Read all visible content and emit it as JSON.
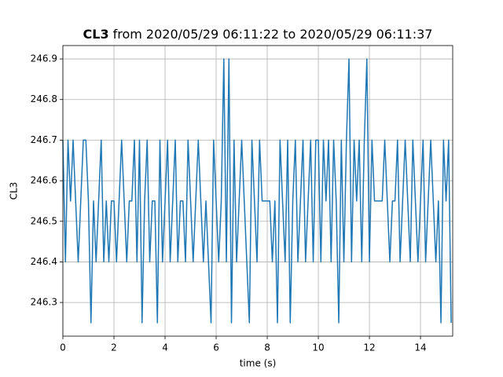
{
  "chart_data": {
    "type": "line",
    "title": {
      "name": "CL3",
      "text": "from 2020/05/29 06:11:22 to 2020/05/29 06:11:37"
    },
    "xlabel": "time (s)",
    "ylabel": "CL3",
    "x": [
      0,
      0.1,
      0.2,
      0.3,
      0.4,
      0.5,
      0.6,
      0.7,
      0.8,
      0.9,
      1,
      1.1,
      1.2,
      1.3,
      1.4,
      1.5,
      1.6,
      1.7,
      1.8,
      1.9,
      2,
      2.1,
      2.2,
      2.3,
      2.4,
      2.5,
      2.6,
      2.7,
      2.8,
      2.9,
      3,
      3.1,
      3.2,
      3.3,
      3.4,
      3.5,
      3.6,
      3.7,
      3.8,
      3.9,
      4,
      4.1,
      4.2,
      4.3,
      4.4,
      4.5,
      4.6,
      4.7,
      4.8,
      4.9,
      5,
      5.1,
      5.2,
      5.3,
      5.4,
      5.5,
      5.6,
      5.7,
      5.8,
      5.9,
      6,
      6.1,
      6.2,
      6.3,
      6.4,
      6.5,
      6.6,
      6.7,
      6.8,
      6.9,
      7,
      7.1,
      7.2,
      7.3,
      7.4,
      7.5,
      7.6,
      7.7,
      7.8,
      7.9,
      8,
      8.1,
      8.2,
      8.3,
      8.4,
      8.5,
      8.6,
      8.7,
      8.8,
      8.9,
      9,
      9.1,
      9.2,
      9.3,
      9.4,
      9.5,
      9.6,
      9.7,
      9.8,
      9.9,
      10,
      10.1,
      10.2,
      10.3,
      10.4,
      10.5,
      10.6,
      10.7,
      10.8,
      10.9,
      11,
      11.1,
      11.2,
      11.3,
      11.4,
      11.5,
      11.6,
      11.7,
      11.8,
      11.9,
      12,
      12.1,
      12.2,
      12.3,
      12.4,
      12.5,
      12.6,
      12.7,
      12.8,
      12.9,
      13,
      13.1,
      13.2,
      13.3,
      13.4,
      13.5,
      13.6,
      13.7,
      13.8,
      13.9,
      14,
      14.1,
      14.2,
      14.3,
      14.4,
      14.5,
      14.6,
      14.7,
      14.8,
      14.9,
      15,
      15.1,
      15.2
    ],
    "series": [
      {
        "color": "#1f77b4",
        "values": [
          246.7,
          246.4,
          246.7,
          246.55,
          246.7,
          246.55,
          246.4,
          246.55,
          246.7,
          246.7,
          246.55,
          246.25,
          246.55,
          246.4,
          246.55,
          246.7,
          246.4,
          246.55,
          246.4,
          246.55,
          246.55,
          246.4,
          246.55,
          246.7,
          246.55,
          246.4,
          246.55,
          246.55,
          246.7,
          246.4,
          246.7,
          246.25,
          246.55,
          246.7,
          246.4,
          246.55,
          246.55,
          246.25,
          246.7,
          246.4,
          246.55,
          246.7,
          246.4,
          246.55,
          246.7,
          246.4,
          246.55,
          246.55,
          246.4,
          246.7,
          246.55,
          246.4,
          246.55,
          246.7,
          246.55,
          246.4,
          246.55,
          246.4,
          246.25,
          246.7,
          246.55,
          246.4,
          246.55,
          246.9,
          246.4,
          246.9,
          246.25,
          246.7,
          246.4,
          246.55,
          246.7,
          246.55,
          246.4,
          246.25,
          246.7,
          246.55,
          246.4,
          246.7,
          246.55,
          246.55,
          246.55,
          246.55,
          246.4,
          246.55,
          246.25,
          246.7,
          246.55,
          246.4,
          246.7,
          246.25,
          246.55,
          246.7,
          246.4,
          246.55,
          246.7,
          246.4,
          246.55,
          246.7,
          246.4,
          246.7,
          246.7,
          246.4,
          246.7,
          246.55,
          246.7,
          246.4,
          246.7,
          246.55,
          246.25,
          246.7,
          246.4,
          246.7,
          246.9,
          246.4,
          246.7,
          246.55,
          246.7,
          246.4,
          246.7,
          246.9,
          246.4,
          246.7,
          246.55,
          246.55,
          246.55,
          246.55,
          246.7,
          246.55,
          246.4,
          246.55,
          246.55,
          246.7,
          246.4,
          246.55,
          246.7,
          246.55,
          246.4,
          246.7,
          246.55,
          246.4,
          246.55,
          246.7,
          246.4,
          246.55,
          246.7,
          246.55,
          246.4,
          246.55,
          246.25,
          246.7,
          246.55,
          246.7,
          246.25
        ]
      }
    ],
    "xlim": [
      0,
      15.26
    ],
    "xticks": [
      0,
      2,
      4,
      6,
      8,
      10,
      12,
      14
    ],
    "ylim": [
      246.217,
      246.933
    ],
    "yticks": [
      246.3,
      246.4,
      246.5,
      246.6,
      246.7,
      246.8,
      246.9
    ],
    "grid": true
  }
}
